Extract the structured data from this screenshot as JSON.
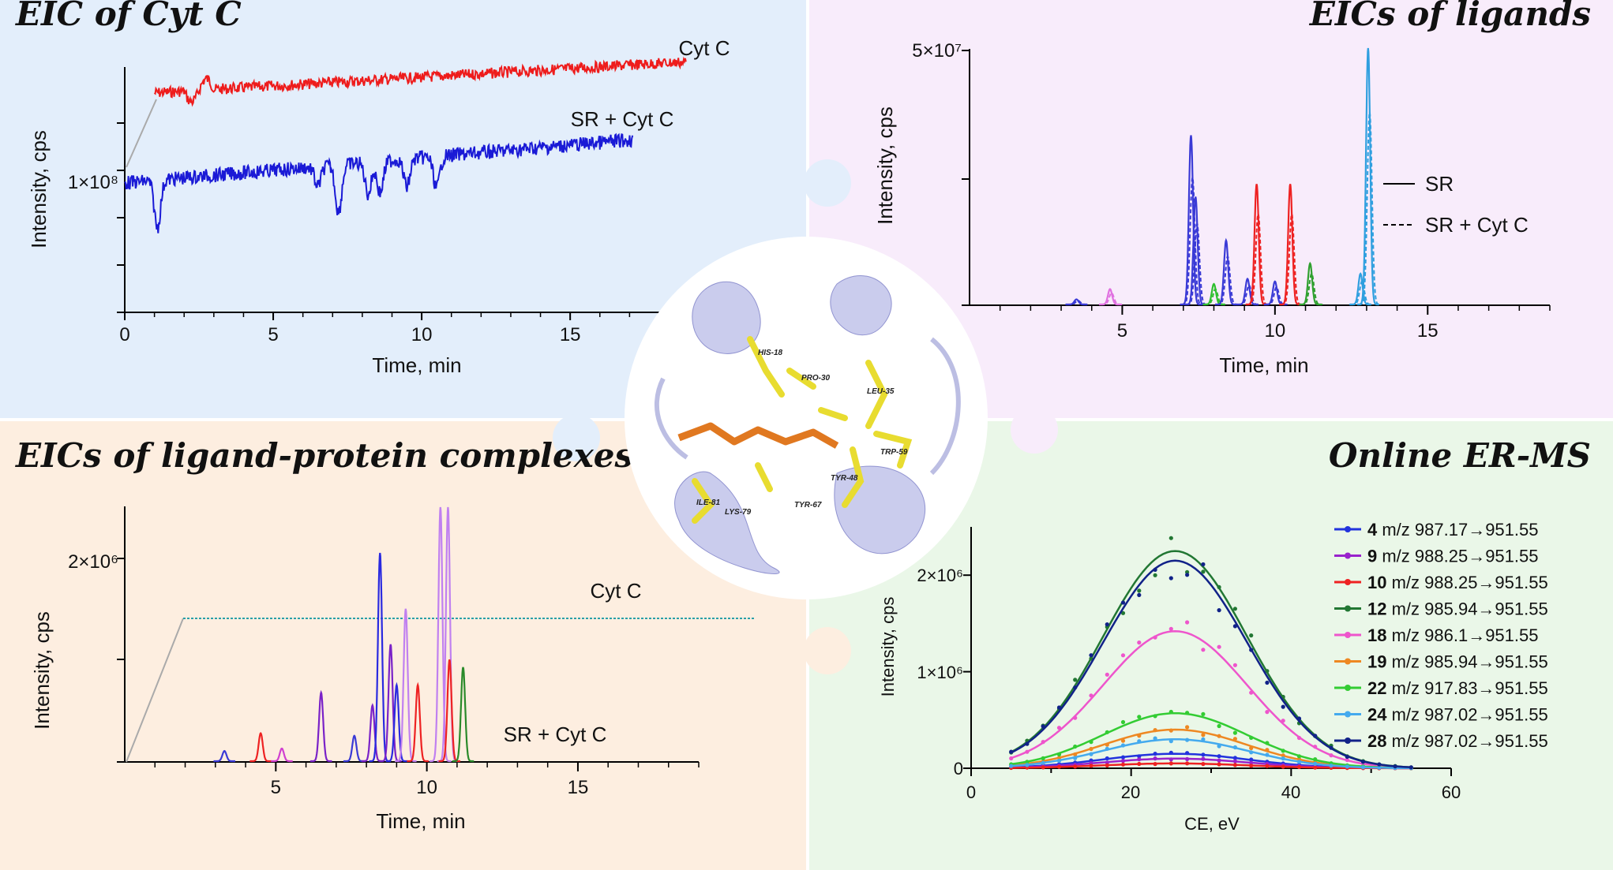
{
  "panels": {
    "tl": {
      "title": "EIC of Cyt C",
      "bg": "#e3eefb",
      "chart_data": {
        "type": "line",
        "xlabel": "Time, min",
        "ylabel": "Intensity, cps",
        "xlim": [
          0,
          18
        ],
        "xticks": [
          "0",
          "5",
          "10",
          "15"
        ],
        "ytick_label": "1×10⁸",
        "series": [
          {
            "name": "Cyt C",
            "label": "Cyt C",
            "color": "#ee1c1c",
            "level": 0.86
          },
          {
            "name": "SR + Cyt C",
            "label": "SR + Cyt C",
            "color": "#1a1ad6",
            "level": 0.45
          }
        ]
      }
    },
    "tr": {
      "title": "EICs of ligands",
      "bg": "#f8ecfb",
      "chart_data": {
        "type": "line",
        "xlabel": "Time, min",
        "ylabel": "Intensity, cps",
        "xlim": [
          0,
          19
        ],
        "xticks": [
          "5",
          "10",
          "15"
        ],
        "ytick_label": "5×10⁷",
        "ylim": [
          0,
          50000000
        ],
        "legend": [
          {
            "label": "SR",
            "style": "solid"
          },
          {
            "label": "SR + Cyt C",
            "style": "dashed"
          }
        ],
        "peaks": [
          {
            "t": 7.25,
            "h": 0.66,
            "color": "#3a3ad6"
          },
          {
            "t": 7.4,
            "h": 0.42,
            "color": "#3a3ad6"
          },
          {
            "t": 8.0,
            "h": 0.08,
            "color": "#2fbf2f"
          },
          {
            "t": 8.4,
            "h": 0.25,
            "color": "#3a3ad6"
          },
          {
            "t": 9.1,
            "h": 0.1,
            "color": "#3a3ad6"
          },
          {
            "t": 9.4,
            "h": 0.47,
            "color": "#ee2222"
          },
          {
            "t": 10.0,
            "h": 0.09,
            "color": "#3a3ad6"
          },
          {
            "t": 10.5,
            "h": 0.47,
            "color": "#ee2222"
          },
          {
            "t": 11.15,
            "h": 0.16,
            "color": "#2fa02f"
          },
          {
            "t": 12.8,
            "h": 0.12,
            "color": "#2f9fdf"
          },
          {
            "t": 13.05,
            "h": 1.0,
            "color": "#2f9fdf"
          },
          {
            "t": 4.6,
            "h": 0.06,
            "color": "#e070e0"
          },
          {
            "t": 3.5,
            "h": 0.02,
            "color": "#3a3ad6"
          }
        ]
      }
    },
    "bl": {
      "title": "EICs of ligand-protein complexes",
      "bg": "#fdeee0",
      "chart_data": {
        "type": "line",
        "xlabel": "Time, min",
        "ylabel": "Intensity, cps",
        "xlim": [
          0,
          19
        ],
        "xticks": [
          "5",
          "10",
          "15"
        ],
        "ytick_label": "2×10⁶",
        "ylim": [
          0,
          2500000
        ],
        "series_labels": [
          "Cyt C",
          "SR + Cyt C"
        ],
        "peaks": [
          {
            "t": 4.5,
            "h": 0.11,
            "color": "#ee2222"
          },
          {
            "t": 5.2,
            "h": 0.05,
            "color": "#d040d0"
          },
          {
            "t": 6.5,
            "h": 0.27,
            "color": "#7a22c8"
          },
          {
            "t": 7.6,
            "h": 0.1,
            "color": "#3a3ad6"
          },
          {
            "t": 8.2,
            "h": 0.22,
            "color": "#7a22c8"
          },
          {
            "t": 8.45,
            "h": 0.82,
            "color": "#2a2ae0"
          },
          {
            "t": 8.8,
            "h": 0.46,
            "color": "#7a22c8"
          },
          {
            "t": 9.0,
            "h": 0.3,
            "color": "#2a2ae0"
          },
          {
            "t": 9.3,
            "h": 0.6,
            "color": "#c080f0"
          },
          {
            "t": 9.7,
            "h": 0.3,
            "color": "#ee2222"
          },
          {
            "t": 10.45,
            "h": 1.0,
            "color": "#c080f0"
          },
          {
            "t": 10.7,
            "h": 1.0,
            "color": "#c080f0"
          },
          {
            "t": 10.75,
            "h": 0.4,
            "color": "#ee2222"
          },
          {
            "t": 11.2,
            "h": 0.37,
            "color": "#2a8a2a"
          },
          {
            "t": 3.3,
            "h": 0.04,
            "color": "#3a3ad6"
          }
        ]
      }
    },
    "br": {
      "title": "Online ER-MS",
      "bg": "#eaf7e8",
      "chart_data": {
        "type": "scatter",
        "xlabel": "CE, eV",
        "ylabel": "Intensity, cps",
        "xlim": [
          0,
          60
        ],
        "ylim": [
          0,
          2500000
        ],
        "xticks": [
          "0",
          "20",
          "40",
          "60"
        ],
        "yticks": [
          "0",
          "1×10⁶",
          "2×10⁶"
        ],
        "series": [
          {
            "id": "4",
            "label": "m/z 987.17→951.55",
            "color": "#2233dd",
            "peak": 150000
          },
          {
            "id": "9",
            "label": "m/z 988.25→951.55",
            "color": "#9922cc",
            "peak": 100000
          },
          {
            "id": "10",
            "label": "m/z 988.25→951.55",
            "color": "#ee2222",
            "peak": 50000
          },
          {
            "id": "12",
            "label": "m/z 985.94→951.55",
            "color": "#227733",
            "peak": 2250000
          },
          {
            "id": "18",
            "label": "m/z 986.1→951.55",
            "color": "#ee55cc",
            "peak": 1420000
          },
          {
            "id": "19",
            "label": "m/z 985.94→951.55",
            "color": "#ee8822",
            "peak": 400000
          },
          {
            "id": "22",
            "label": "m/z 917.83→951.55",
            "color": "#33cc33",
            "peak": 570000
          },
          {
            "id": "24",
            "label": "m/z 987.02→951.55",
            "color": "#44aaee",
            "peak": 300000
          },
          {
            "id": "28",
            "label": "m/z 987.02→951.55",
            "color": "#112288",
            "peak": 2150000
          }
        ]
      }
    }
  },
  "molecule": {
    "residues": [
      "HIS-18",
      "PRO-30",
      "LEU-35",
      "TRP-59",
      "TYR-48",
      "TYR-67",
      "ILE-81",
      "LYS-79"
    ]
  }
}
